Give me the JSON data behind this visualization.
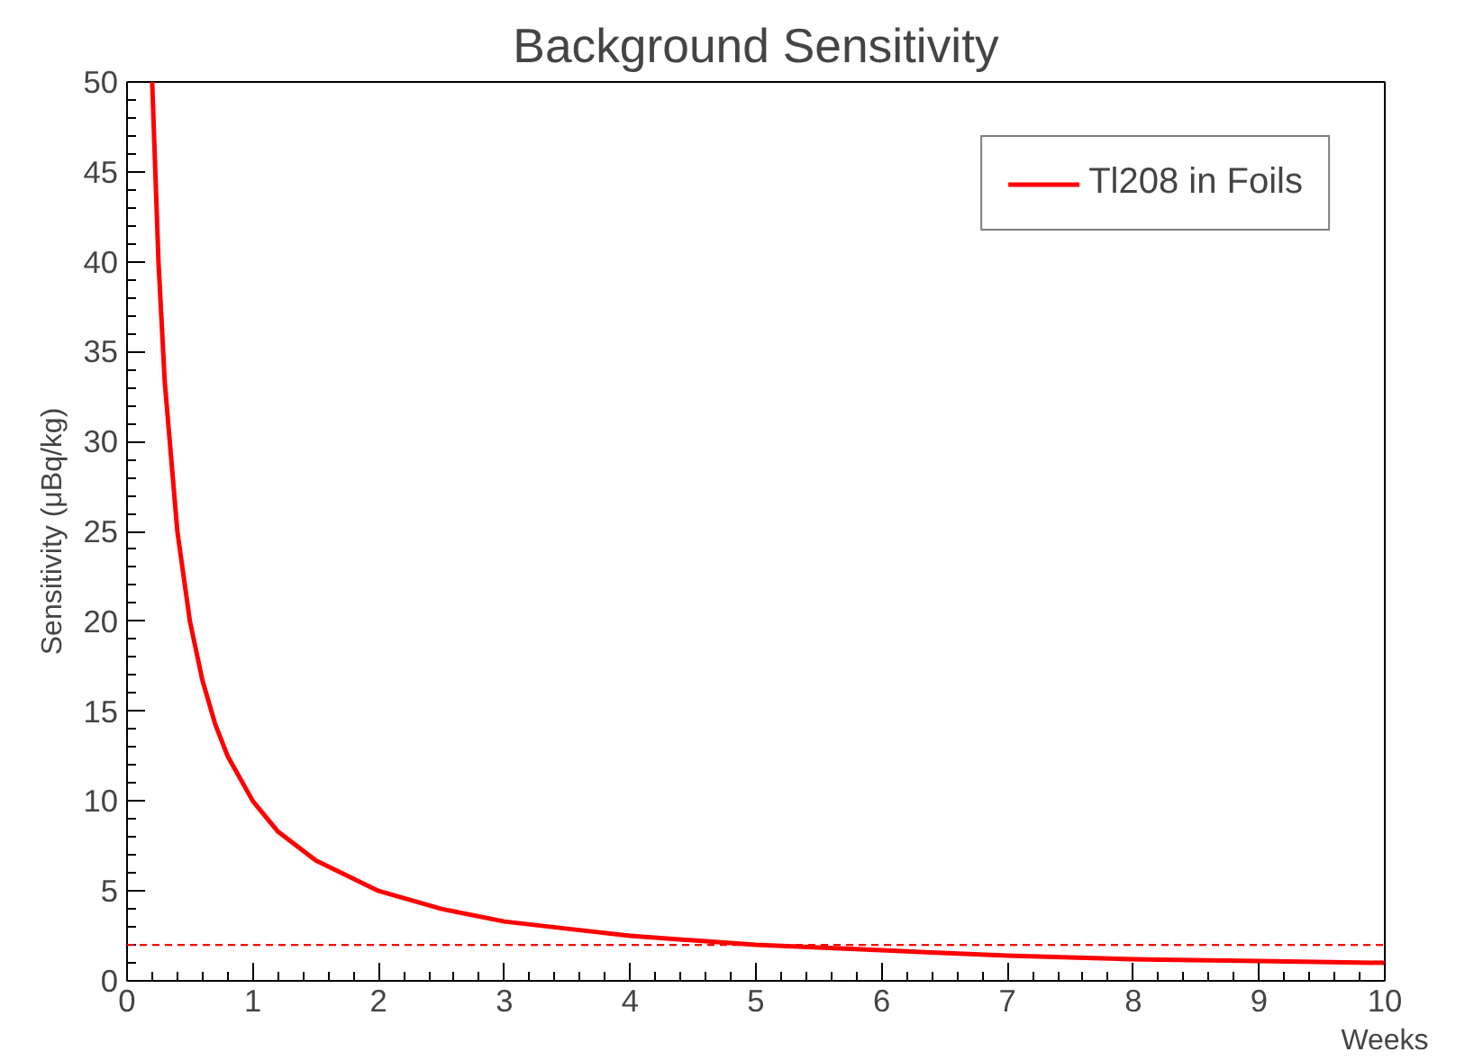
{
  "chart_data": {
    "type": "line",
    "title": "Background Sensitivity",
    "xlabel": "Weeks",
    "ylabel": "Sensitivity (μBq/kg)",
    "x": [
      0.2,
      0.25,
      0.3,
      0.4,
      0.5,
      0.6,
      0.7,
      0.8,
      1,
      1.2,
      1.5,
      2,
      2.5,
      3,
      3.5,
      4,
      5,
      6,
      7,
      8,
      9,
      10
    ],
    "series": [
      {
        "name": "Tl208 in Foils",
        "color": "#ff0000",
        "values": [
          50,
          40,
          33.3,
          25,
          20,
          16.7,
          14.3,
          12.5,
          10,
          8.3,
          6.7,
          5,
          4,
          3.3,
          2.9,
          2.5,
          2,
          1.7,
          1.4,
          1.2,
          1.1,
          1
        ]
      }
    ],
    "xlim": [
      0,
      10
    ],
    "xticks": [
      0,
      1,
      2,
      3,
      4,
      5,
      6,
      7,
      8,
      9,
      10
    ],
    "ylim": [
      0,
      50
    ],
    "yticks": [
      0,
      5,
      10,
      15,
      20,
      25,
      30,
      35,
      40,
      45,
      50
    ],
    "ref_lines": [
      {
        "axis": "y",
        "value": 2,
        "color": "#ff0000",
        "line_style": "dashed"
      }
    ],
    "legend": "top right",
    "grid": false,
    "line_style": "solid"
  }
}
